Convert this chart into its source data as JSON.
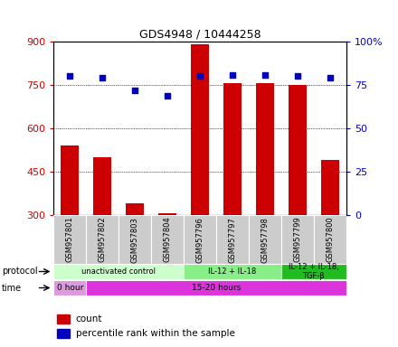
{
  "title": "GDS4948 / 10444258",
  "samples": [
    "GSM957801",
    "GSM957802",
    "GSM957803",
    "GSM957804",
    "GSM957796",
    "GSM957797",
    "GSM957798",
    "GSM957799",
    "GSM957800"
  ],
  "counts": [
    540,
    500,
    340,
    305,
    890,
    755,
    755,
    750,
    490
  ],
  "percentile_ranks": [
    80,
    79,
    72,
    69,
    80,
    81,
    81,
    80,
    79
  ],
  "ylim_left": [
    300,
    900
  ],
  "ylim_right": [
    0,
    100
  ],
  "yticks_left": [
    300,
    450,
    600,
    750,
    900
  ],
  "yticks_right": [
    0,
    25,
    50,
    75,
    100
  ],
  "bar_color": "#cc0000",
  "dot_color": "#0000bb",
  "protocol_groups": [
    {
      "label": "unactivated control",
      "start": 0,
      "end": 4,
      "color": "#ccffcc"
    },
    {
      "label": "IL-12 + IL-18",
      "start": 4,
      "end": 7,
      "color": "#88ee88"
    },
    {
      "label": "IL-12 + IL-18,\nTGF-β",
      "start": 7,
      "end": 9,
      "color": "#22bb22"
    }
  ],
  "time_group_0_label": "0 hour",
  "time_group_0_color": "#dd99dd",
  "time_group_1_label": "15-20 hours",
  "time_group_1_color": "#dd33dd",
  "legend_count_color": "#cc0000",
  "legend_pct_color": "#0000bb",
  "tick_color_left": "#cc0000",
  "tick_color_right": "#0000bb",
  "sample_box_color": "#cccccc",
  "fig_width": 4.4,
  "fig_height": 3.84,
  "dpi": 100
}
